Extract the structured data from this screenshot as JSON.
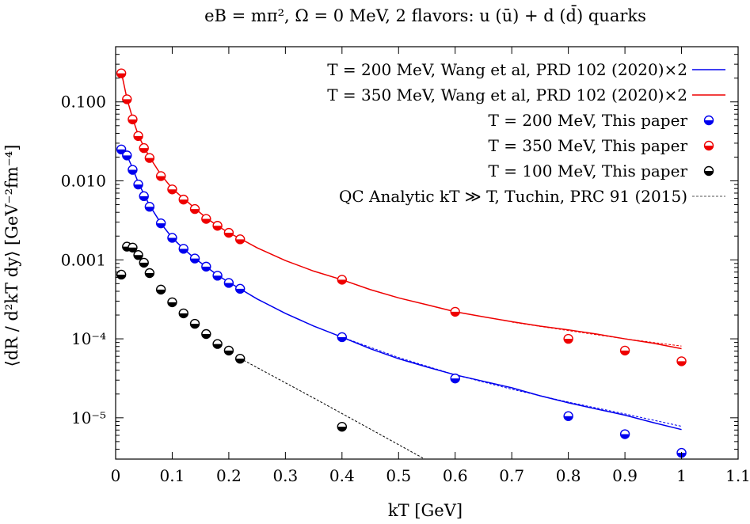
{
  "chart_data": {
    "type": "scatter",
    "title": "eB = mπ², Ω = 0 MeV, 2 flavors: u (ū) + d (d̄) quarks",
    "xlabel": "kT [GeV]",
    "ylabel": "⟨dR / d²kT dy⟩ [GeV⁻²fm⁻⁴]",
    "xlim": [
      0,
      1.1
    ],
    "ylim": [
      3e-06,
      0.5
    ],
    "yscale": "log",
    "grid": false,
    "legend_position": "top-right",
    "x_ticks": [
      {
        "value": 0,
        "label": "0"
      },
      {
        "value": 0.1,
        "label": "0.1"
      },
      {
        "value": 0.2,
        "label": "0.2"
      },
      {
        "value": 0.3,
        "label": "0.3"
      },
      {
        "value": 0.4,
        "label": "0.4"
      },
      {
        "value": 0.5,
        "label": "0.5"
      },
      {
        "value": 0.6,
        "label": "0.6"
      },
      {
        "value": 0.7,
        "label": "0.7"
      },
      {
        "value": 0.8,
        "label": "0.8"
      },
      {
        "value": 0.9,
        "label": "0.9"
      },
      {
        "value": 1.0,
        "label": "1"
      },
      {
        "value": 1.1,
        "label": "1.1"
      }
    ],
    "y_ticks": [
      {
        "value": 0.1,
        "label": "0.100"
      },
      {
        "value": 0.01,
        "label": "0.010"
      },
      {
        "value": 0.001,
        "label": "0.001"
      },
      {
        "value": 0.0001,
        "label": "10⁻⁴"
      },
      {
        "value": 1e-05,
        "label": "10⁻⁵"
      }
    ],
    "series": [
      {
        "name": "T = 200 MeV, Wang et al, PRD 102 (2020)×2",
        "kind": "line",
        "color": "#0000ee",
        "x": [
          0.01,
          0.02,
          0.03,
          0.04,
          0.05,
          0.06,
          0.08,
          0.1,
          0.12,
          0.14,
          0.16,
          0.18,
          0.2,
          0.22,
          0.25,
          0.3,
          0.35,
          0.4,
          0.45,
          0.5,
          0.55,
          0.6,
          0.65,
          0.7,
          0.75,
          0.8,
          0.85,
          0.9,
          0.95,
          1.0
        ],
        "y": [
          0.0255,
          0.021,
          0.0145,
          0.0095,
          0.0068,
          0.0049,
          0.0029,
          0.0019,
          0.00138,
          0.00104,
          0.00082,
          0.00064,
          0.00052,
          0.00043,
          0.00032,
          0.00021,
          0.000145,
          0.000105,
          7.5e-05,
          5.6e-05,
          4.4e-05,
          3.5e-05,
          2.9e-05,
          2.4e-05,
          1.9e-05,
          1.55e-05,
          1.29e-05,
          1.08e-05,
          8.7e-06,
          7.1e-06
        ]
      },
      {
        "name": "T = 350 MeV, Wang et al, PRD 102 (2020)×2",
        "kind": "line",
        "color": "#ee0000",
        "x": [
          0.01,
          0.02,
          0.03,
          0.04,
          0.05,
          0.06,
          0.08,
          0.1,
          0.12,
          0.14,
          0.16,
          0.18,
          0.2,
          0.22,
          0.25,
          0.3,
          0.35,
          0.4,
          0.45,
          0.5,
          0.55,
          0.6,
          0.65,
          0.7,
          0.75,
          0.8,
          0.85,
          0.9,
          0.95,
          1.0
        ],
        "y": [
          0.24,
          0.11,
          0.062,
          0.038,
          0.027,
          0.02,
          0.012,
          0.008,
          0.006,
          0.0045,
          0.0034,
          0.0027,
          0.0022,
          0.00186,
          0.00142,
          0.00098,
          0.00072,
          0.00056,
          0.00042,
          0.00033,
          0.00027,
          0.00022,
          0.00019,
          0.000165,
          0.000145,
          0.00013,
          0.000115,
          0.0001,
          8.8e-05,
          7.5e-05
        ]
      },
      {
        "name": "T = 200 MeV, This paper",
        "kind": "points",
        "color": "#0000ee",
        "x": [
          0.01,
          0.02,
          0.03,
          0.04,
          0.05,
          0.06,
          0.08,
          0.1,
          0.12,
          0.14,
          0.16,
          0.18,
          0.2,
          0.22,
          0.4,
          0.6,
          0.8,
          0.9,
          1.0
        ],
        "y": [
          0.025,
          0.021,
          0.0138,
          0.009,
          0.0064,
          0.0047,
          0.0029,
          0.0019,
          0.00138,
          0.00104,
          0.00082,
          0.00063,
          0.00051,
          0.00043,
          0.000105,
          3.15e-05,
          1.05e-05,
          6.2e-06,
          3.6e-06
        ]
      },
      {
        "name": "T = 350 MeV, This paper",
        "kind": "points",
        "color": "#ee0000",
        "x": [
          0.01,
          0.02,
          0.03,
          0.04,
          0.05,
          0.06,
          0.08,
          0.1,
          0.12,
          0.14,
          0.16,
          0.18,
          0.2,
          0.22,
          0.4,
          0.6,
          0.8,
          0.9,
          1.0
        ],
        "y": [
          0.23,
          0.108,
          0.06,
          0.037,
          0.026,
          0.0195,
          0.0115,
          0.0078,
          0.0058,
          0.0044,
          0.0033,
          0.0027,
          0.0022,
          0.00182,
          0.00056,
          0.00022,
          0.0001,
          7.1e-05,
          5.2e-05
        ]
      },
      {
        "name": "T = 100 MeV, This paper",
        "kind": "points",
        "color": "#000000",
        "x": [
          0.01,
          0.02,
          0.03,
          0.04,
          0.05,
          0.06,
          0.08,
          0.1,
          0.12,
          0.14,
          0.16,
          0.18,
          0.2,
          0.22,
          0.4
        ],
        "y": [
          0.00065,
          0.00147,
          0.00143,
          0.00115,
          0.00092,
          0.00068,
          0.00042,
          0.00029,
          0.00021,
          0.000155,
          0.000115,
          8.6e-05,
          7.1e-05,
          5.6e-05,
          7.7e-06
        ]
      },
      {
        "name": "QC Analytic kT ≫ T, Tuchin, PRC 91 (2015)",
        "kind": "dashed",
        "color": "#555555",
        "segments": [
          {
            "color": "#000000",
            "x": [
              0.22,
              0.35,
              0.45,
              0.55
            ],
            "y": [
              5.65e-05,
              1.78e-05,
              7.2e-06,
              2.9e-06
            ]
          },
          {
            "color": "#0000ee",
            "x": [
              0.4,
              0.5,
              0.6,
              0.7,
              0.8,
              0.9,
              1.0
            ],
            "y": [
              0.000105,
              5.8e-05,
              3.5e-05,
              2.3e-05,
              1.58e-05,
              1.12e-05,
              7.8e-06
            ]
          },
          {
            "color": "#ee0000",
            "x": [
              0.7,
              0.8,
              0.9,
              1.0
            ],
            "y": [
              0.000163,
              0.000127,
              0.0001,
              8.1e-05
            ]
          }
        ]
      }
    ]
  }
}
